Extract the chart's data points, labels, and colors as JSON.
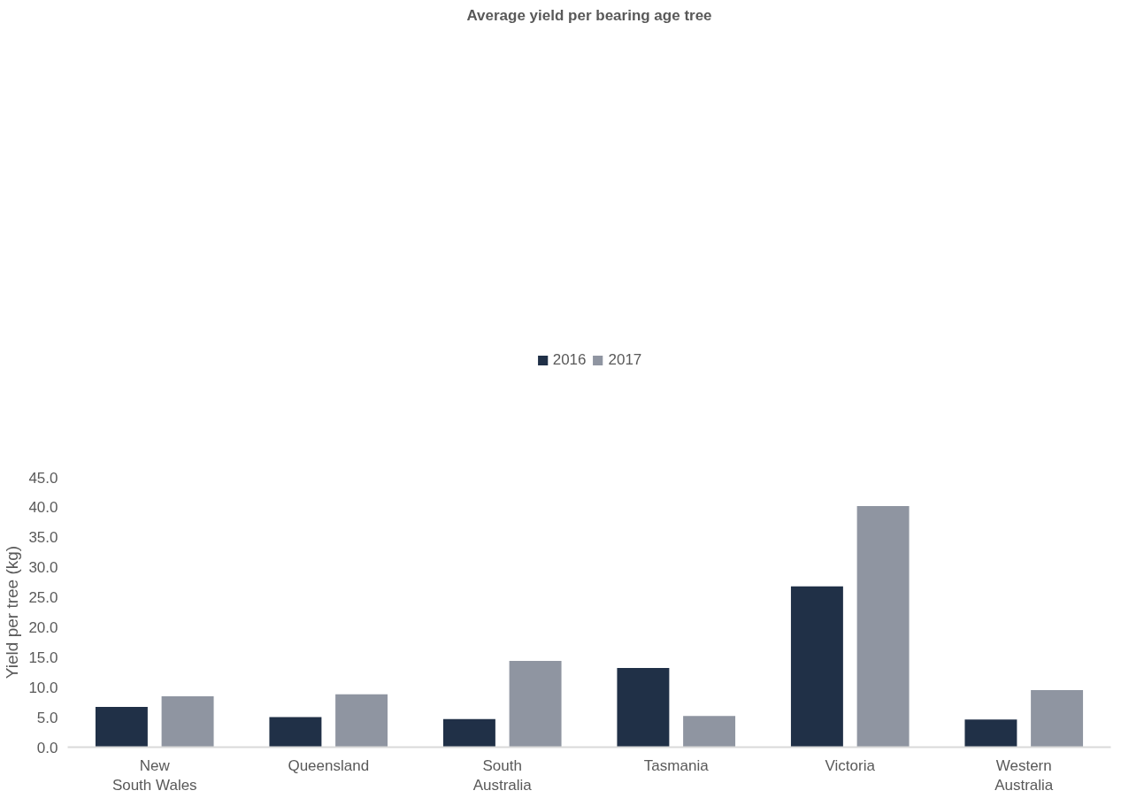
{
  "chart_data": {
    "type": "bar",
    "title": "Average yield per bearing age tree",
    "ylabel": "Yield per tree (kg)",
    "categories": [
      "New South Wales",
      "Queensland",
      "South Australia",
      "Tasmania",
      "Victoria",
      "Western Australia"
    ],
    "series": [
      {
        "name": "2016",
        "color": "#203047",
        "values": [
          6.7,
          5.0,
          4.7,
          13.2,
          26.8,
          4.6
        ]
      },
      {
        "name": "2017",
        "color": "#8f95a1",
        "values": [
          8.5,
          8.8,
          14.4,
          5.2,
          40.2,
          9.5
        ]
      }
    ],
    "ylim": [
      0,
      45
    ],
    "yticks": [
      {
        "value": 0,
        "label": "0.0"
      },
      {
        "value": 5,
        "label": "5.0"
      },
      {
        "value": 10,
        "label": "10.0"
      },
      {
        "value": 15,
        "label": "15.0"
      },
      {
        "value": 20,
        "label": "20.0"
      },
      {
        "value": 25,
        "label": "25.0"
      },
      {
        "value": 30,
        "label": "30.0"
      },
      {
        "value": 35,
        "label": "35.0"
      },
      {
        "value": 40,
        "label": "40.0"
      },
      {
        "value": 45,
        "label": "45.0"
      }
    ],
    "grid": false,
    "legend": "top"
  }
}
